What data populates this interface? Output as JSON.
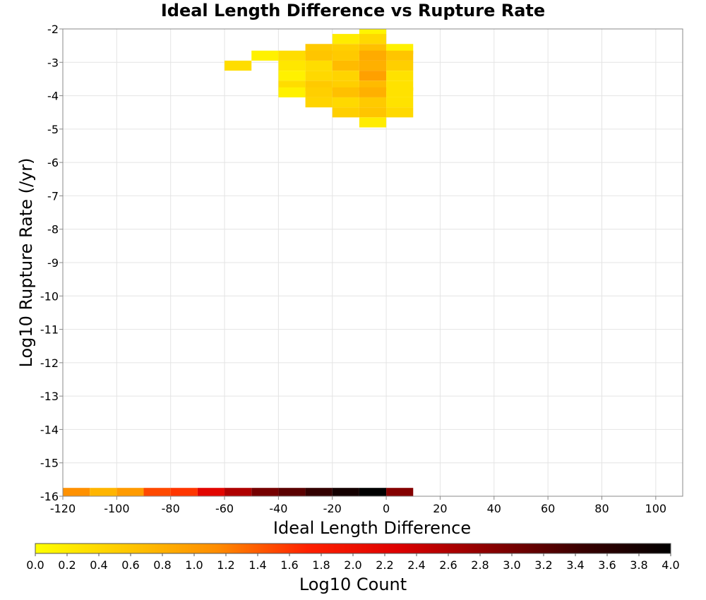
{
  "chart_data": {
    "type": "heatmap",
    "title": "Ideal Length Difference vs Rupture Rate",
    "xlabel": "Ideal Length Difference",
    "ylabel": "Log10 Rupture Rate (/yr)",
    "xlim": [
      -120,
      110
    ],
    "ylim": [
      -16,
      -2
    ],
    "x_ticks": [
      "-120",
      "-100",
      "-80",
      "-60",
      "-40",
      "-20",
      "0",
      "20",
      "40",
      "60",
      "80",
      "100"
    ],
    "y_ticks": [
      "-2",
      "-3",
      "-4",
      "-5",
      "-6",
      "-7",
      "-8",
      "-9",
      "-10",
      "-11",
      "-12",
      "-13",
      "-14",
      "-15",
      "-16"
    ],
    "x_bin_width": 10,
    "y_bin_height": 0.3,
    "grid": true,
    "colorbar": {
      "label": "Log10 Count",
      "min": 0,
      "max": 4,
      "ticks": [
        "0.0",
        "0.2",
        "0.4",
        "0.6",
        "0.8",
        "1.0",
        "1.2",
        "1.4",
        "1.6",
        "1.8",
        "2.0",
        "2.2",
        "2.4",
        "2.6",
        "2.8",
        "3.0",
        "3.2",
        "3.4",
        "3.6",
        "3.8",
        "4.0"
      ],
      "colors": [
        "#ffff00",
        "#ffc800",
        "#ff8c00",
        "#ff2000",
        "#dd0000",
        "#8a0000",
        "#3a0000",
        "#000000"
      ],
      "placement": "bottom"
    },
    "cells": [
      {
        "x": -10,
        "y": -2.1,
        "v": 0.1
      },
      {
        "x": -20,
        "y": -2.3,
        "v": 0.2
      },
      {
        "x": -10,
        "y": -2.3,
        "v": 0.4
      },
      {
        "x": -30,
        "y": -2.6,
        "v": 0.55
      },
      {
        "x": -20,
        "y": -2.6,
        "v": 0.5
      },
      {
        "x": -10,
        "y": -2.6,
        "v": 0.65
      },
      {
        "x": 0,
        "y": -2.6,
        "v": 0.15
      },
      {
        "x": -50,
        "y": -2.8,
        "v": 0.15
      },
      {
        "x": -40,
        "y": -2.8,
        "v": 0.35
      },
      {
        "x": -30,
        "y": -2.8,
        "v": 0.6
      },
      {
        "x": -20,
        "y": -2.8,
        "v": 0.55
      },
      {
        "x": -10,
        "y": -2.8,
        "v": 0.85
      },
      {
        "x": 0,
        "y": -2.8,
        "v": 0.6
      },
      {
        "x": -60,
        "y": -3.1,
        "v": 0.35
      },
      {
        "x": -40,
        "y": -3.1,
        "v": 0.25
      },
      {
        "x": -30,
        "y": -3.1,
        "v": 0.35
      },
      {
        "x": -20,
        "y": -3.1,
        "v": 0.7
      },
      {
        "x": -10,
        "y": -3.1,
        "v": 0.8
      },
      {
        "x": 0,
        "y": -3.1,
        "v": 0.5
      },
      {
        "x": -40,
        "y": -3.4,
        "v": 0.15
      },
      {
        "x": -30,
        "y": -3.4,
        "v": 0.4
      },
      {
        "x": -20,
        "y": -3.4,
        "v": 0.45
      },
      {
        "x": -10,
        "y": -3.4,
        "v": 0.95
      },
      {
        "x": 0,
        "y": -3.4,
        "v": 0.3
      },
      {
        "x": -40,
        "y": -3.7,
        "v": 0.35
      },
      {
        "x": -30,
        "y": -3.7,
        "v": 0.55
      },
      {
        "x": -20,
        "y": -3.7,
        "v": 0.5
      },
      {
        "x": -10,
        "y": -3.7,
        "v": 0.7
      },
      {
        "x": 0,
        "y": -3.7,
        "v": 0.3
      },
      {
        "x": -40,
        "y": -3.9,
        "v": 0.15
      },
      {
        "x": -30,
        "y": -3.9,
        "v": 0.5
      },
      {
        "x": -20,
        "y": -3.9,
        "v": 0.65
      },
      {
        "x": -10,
        "y": -3.9,
        "v": 0.8
      },
      {
        "x": 0,
        "y": -3.9,
        "v": 0.3
      },
      {
        "x": -30,
        "y": -4.2,
        "v": 0.45
      },
      {
        "x": -20,
        "y": -4.2,
        "v": 0.4
      },
      {
        "x": -10,
        "y": -4.2,
        "v": 0.55
      },
      {
        "x": 0,
        "y": -4.2,
        "v": 0.3
      },
      {
        "x": -20,
        "y": -4.5,
        "v": 0.5
      },
      {
        "x": -10,
        "y": -4.5,
        "v": 0.6
      },
      {
        "x": 0,
        "y": -4.5,
        "v": 0.4
      },
      {
        "x": -10,
        "y": -4.8,
        "v": 0.2
      },
      {
        "x": -120,
        "y": -15.9,
        "v": 1.1
      },
      {
        "x": -110,
        "y": -15.9,
        "v": 0.75
      },
      {
        "x": -100,
        "y": -15.9,
        "v": 1.0
      },
      {
        "x": -90,
        "y": -15.9,
        "v": 1.5
      },
      {
        "x": -80,
        "y": -15.9,
        "v": 1.6
      },
      {
        "x": -70,
        "y": -15.9,
        "v": 2.2
      },
      {
        "x": -60,
        "y": -15.9,
        "v": 2.6
      },
      {
        "x": -50,
        "y": -15.9,
        "v": 3.0
      },
      {
        "x": -40,
        "y": -15.9,
        "v": 3.2
      },
      {
        "x": -30,
        "y": -15.9,
        "v": 3.5
      },
      {
        "x": -20,
        "y": -15.9,
        "v": 3.8
      },
      {
        "x": -10,
        "y": -15.9,
        "v": 4.0
      },
      {
        "x": 0,
        "y": -15.9,
        "v": 2.9
      }
    ]
  }
}
